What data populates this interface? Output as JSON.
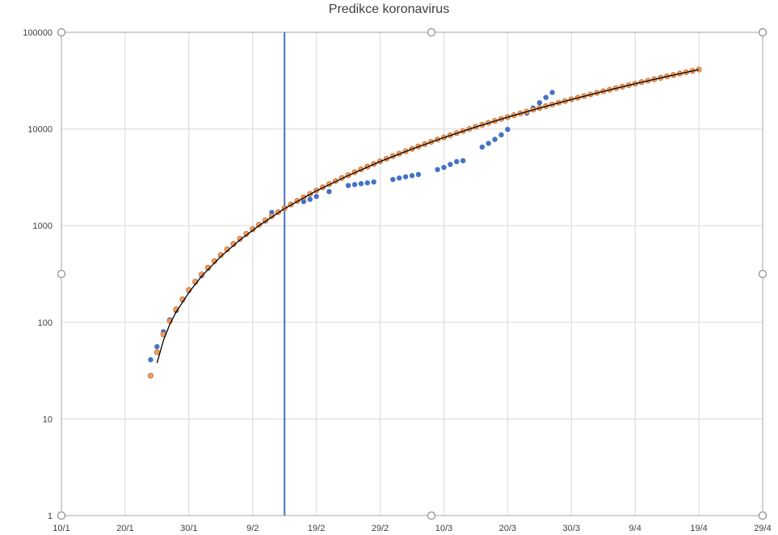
{
  "chart_data": {
    "type": "scatter",
    "title": "Predikce koronavirus",
    "xlabel": "",
    "ylabel": "",
    "x_scale": "date",
    "x_range": [
      "2020-01-10",
      "2020-04-29"
    ],
    "x_tick_labels": [
      "10/1",
      "20/1",
      "30/1",
      "9/2",
      "19/2",
      "29/2",
      "10/3",
      "20/3",
      "30/3",
      "9/4",
      "19/4",
      "29/4"
    ],
    "y_scale": "log",
    "y_range": [
      1,
      100000
    ],
    "y_tick_labels": [
      "1",
      "10",
      "100",
      "1000",
      "10000",
      "100000"
    ],
    "grid": true,
    "legend": "none",
    "vertical_marker": {
      "x": "2020-02-14",
      "color": "#4472c4"
    },
    "series": [
      {
        "kind": "points",
        "color": "#4472c4",
        "points": [
          [
            "2020-01-24",
            41
          ],
          [
            "2020-01-25",
            56
          ],
          [
            "2020-01-26",
            80
          ],
          [
            "2020-01-27",
            106
          ],
          [
            "2020-01-28",
            132
          ],
          [
            "2020-01-29",
            170
          ],
          [
            "2020-01-30",
            213
          ],
          [
            "2020-01-31",
            259
          ],
          [
            "2020-02-01",
            304
          ],
          [
            "2020-02-02",
            362
          ],
          [
            "2020-02-03",
            426
          ],
          [
            "2020-02-04",
            492
          ],
          [
            "2020-02-05",
            565
          ],
          [
            "2020-02-06",
            638
          ],
          [
            "2020-02-07",
            724
          ],
          [
            "2020-02-08",
            813
          ],
          [
            "2020-02-09",
            910
          ],
          [
            "2020-02-10",
            1018
          ],
          [
            "2020-02-11",
            1115
          ],
          [
            "2020-02-12",
            1368
          ],
          [
            "2020-02-17",
            1770
          ],
          [
            "2020-02-18",
            1868
          ],
          [
            "2020-02-19",
            2004
          ],
          [
            "2020-02-21",
            2250
          ],
          [
            "2020-02-24",
            2600
          ],
          [
            "2020-02-25",
            2660
          ],
          [
            "2020-02-26",
            2720
          ],
          [
            "2020-02-27",
            2770
          ],
          [
            "2020-02-28",
            2830
          ],
          [
            "2020-03-02",
            3000
          ],
          [
            "2020-03-03",
            3110
          ],
          [
            "2020-03-04",
            3200
          ],
          [
            "2020-03-05",
            3290
          ],
          [
            "2020-03-06",
            3380
          ],
          [
            "2020-03-09",
            3800
          ],
          [
            "2020-03-10",
            4000
          ],
          [
            "2020-03-11",
            4300
          ],
          [
            "2020-03-12",
            4600
          ],
          [
            "2020-03-13",
            4700
          ],
          [
            "2020-03-16",
            6500
          ],
          [
            "2020-03-17",
            7100
          ],
          [
            "2020-03-18",
            7800
          ],
          [
            "2020-03-19",
            8700
          ],
          [
            "2020-03-20",
            9900
          ],
          [
            "2020-03-23",
            14600
          ],
          [
            "2020-03-24",
            16500
          ],
          [
            "2020-03-25",
            18700
          ],
          [
            "2020-03-26",
            21200
          ],
          [
            "2020-03-27",
            23900
          ]
        ]
      },
      {
        "kind": "points",
        "color": "#ed9f66",
        "stroke": "#c55a11",
        "points": [
          [
            "2020-01-24",
            28
          ],
          [
            "2020-01-25",
            49
          ],
          [
            "2020-01-26",
            75
          ],
          [
            "2020-01-27",
            103
          ],
          [
            "2020-01-28",
            136
          ],
          [
            "2020-01-29",
            173
          ],
          [
            "2020-01-30",
            216
          ],
          [
            "2020-01-31",
            263
          ],
          [
            "2020-02-01",
            313
          ],
          [
            "2020-02-02",
            368
          ],
          [
            "2020-02-03",
            430
          ],
          [
            "2020-02-04",
            497
          ],
          [
            "2020-02-05",
            570
          ],
          [
            "2020-02-06",
            648
          ],
          [
            "2020-02-07",
            732
          ],
          [
            "2020-02-08",
            822
          ],
          [
            "2020-02-09",
            920
          ],
          [
            "2020-02-10",
            1023
          ],
          [
            "2020-02-11",
            1135
          ],
          [
            "2020-02-12",
            1253
          ],
          [
            "2020-02-13",
            1379
          ],
          [
            "2020-02-14",
            1512
          ],
          [
            "2020-02-15",
            1654
          ],
          [
            "2020-02-16",
            1804
          ],
          [
            "2020-02-17",
            1962
          ],
          [
            "2020-02-18",
            2129
          ],
          [
            "2020-02-19",
            2306
          ],
          [
            "2020-02-20",
            2491
          ],
          [
            "2020-02-21",
            2687
          ],
          [
            "2020-02-22",
            2892
          ],
          [
            "2020-02-23",
            3108
          ],
          [
            "2020-02-24",
            3334
          ],
          [
            "2020-02-25",
            3571
          ],
          [
            "2020-02-26",
            3819
          ],
          [
            "2020-02-27",
            4078
          ],
          [
            "2020-02-28",
            4349
          ],
          [
            "2020-02-29",
            4632
          ],
          [
            "2020-03-01",
            4927
          ],
          [
            "2020-03-02",
            5235
          ],
          [
            "2020-03-03",
            5555
          ],
          [
            "2020-03-04",
            5889
          ],
          [
            "2020-03-05",
            6236
          ],
          [
            "2020-03-06",
            6597
          ],
          [
            "2020-03-07",
            6972
          ],
          [
            "2020-03-08",
            7361
          ],
          [
            "2020-03-09",
            7766
          ],
          [
            "2020-03-10",
            8185
          ],
          [
            "2020-03-11",
            8620
          ],
          [
            "2020-03-12",
            9070
          ],
          [
            "2020-03-13",
            9537
          ],
          [
            "2020-03-14",
            10020
          ],
          [
            "2020-03-15",
            10520
          ],
          [
            "2020-03-16",
            11037
          ],
          [
            "2020-03-17",
            11571
          ],
          [
            "2020-03-18",
            12123
          ],
          [
            "2020-03-19",
            12693
          ],
          [
            "2020-03-20",
            13281
          ],
          [
            "2020-03-21",
            13888
          ],
          [
            "2020-03-22",
            14514
          ],
          [
            "2020-03-23",
            15159
          ],
          [
            "2020-03-24",
            15824
          ],
          [
            "2020-03-25",
            16509
          ],
          [
            "2020-03-26",
            17215
          ],
          [
            "2020-03-27",
            17941
          ],
          [
            "2020-03-28",
            18688
          ],
          [
            "2020-03-29",
            19457
          ],
          [
            "2020-03-30",
            20248
          ],
          [
            "2020-03-31",
            21061
          ],
          [
            "2020-04-01",
            21896
          ],
          [
            "2020-04-02",
            22755
          ],
          [
            "2020-04-03",
            23636
          ],
          [
            "2020-04-04",
            24542
          ],
          [
            "2020-04-05",
            25471
          ],
          [
            "2020-04-06",
            26425
          ],
          [
            "2020-04-07",
            27404
          ],
          [
            "2020-04-08",
            28408
          ],
          [
            "2020-04-09",
            29438
          ],
          [
            "2020-04-10",
            30494
          ],
          [
            "2020-04-11",
            31576
          ],
          [
            "2020-04-12",
            32685
          ],
          [
            "2020-04-13",
            33821
          ],
          [
            "2020-04-14",
            34985
          ],
          [
            "2020-04-15",
            36177
          ],
          [
            "2020-04-16",
            37398
          ],
          [
            "2020-04-17",
            38647
          ],
          [
            "2020-04-18",
            39926
          ],
          [
            "2020-04-19",
            41234
          ]
        ]
      },
      {
        "kind": "line",
        "color": "#000000",
        "points": [
          [
            "2020-01-25",
            38
          ],
          [
            "2020-01-26",
            65
          ],
          [
            "2020-01-27",
            95
          ],
          [
            "2020-01-28",
            128
          ],
          [
            "2020-01-30",
            203
          ],
          [
            "2020-02-01",
            300
          ],
          [
            "2020-02-04",
            480
          ],
          [
            "2020-02-07",
            710
          ],
          [
            "2020-02-10",
            1000
          ],
          [
            "2020-02-14",
            1500
          ],
          [
            "2020-02-19",
            2290
          ],
          [
            "2020-02-24",
            3300
          ],
          [
            "2020-02-29",
            4600
          ],
          [
            "2020-03-05",
            6200
          ],
          [
            "2020-03-10",
            8150
          ],
          [
            "2020-03-15",
            10500
          ],
          [
            "2020-03-20",
            13250
          ],
          [
            "2020-03-25",
            16480
          ],
          [
            "2020-03-30",
            20200
          ],
          [
            "2020-04-04",
            24500
          ],
          [
            "2020-04-09",
            29400
          ],
          [
            "2020-04-14",
            34950
          ],
          [
            "2020-04-19",
            41200
          ]
        ]
      }
    ]
  }
}
